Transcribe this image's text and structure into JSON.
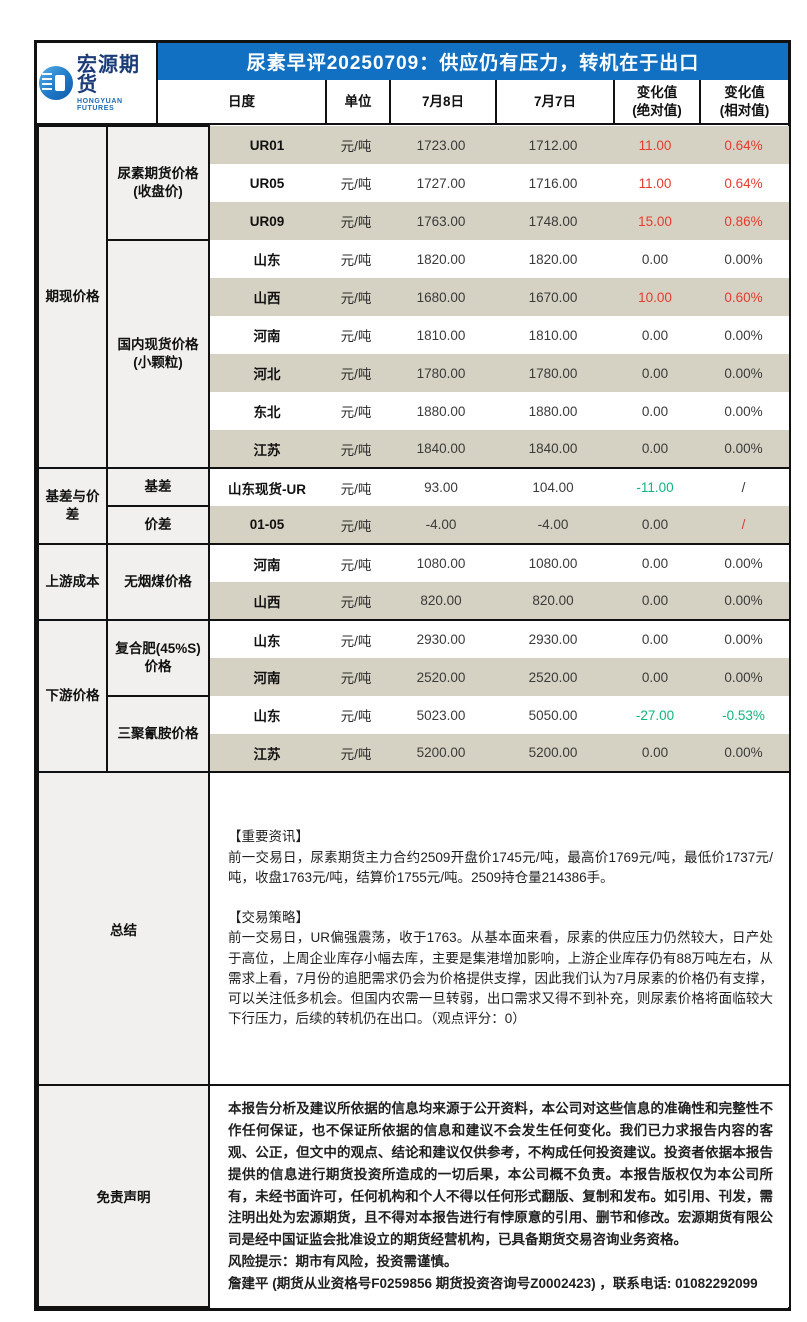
{
  "colors": {
    "accent_blue": "#1170c2",
    "stripe_beige": "#d6d2c3",
    "panel_gray": "#f1f0ee",
    "up_red": "#e8392e",
    "down_green": "#10b57c"
  },
  "logo": {
    "name": "宏源期货",
    "subtitle": "HONGYUAN FUTURES"
  },
  "title": "尿素早评20250709：供应仍有压力，转机在于出口",
  "header": {
    "period": "日度",
    "unit": "单位",
    "date1": "7月8日",
    "date2": "7月7日",
    "chg_abs": "变化值\n(绝对值)",
    "chg_rel": "变化值\n(相对值)"
  },
  "table": {
    "cats": {
      "c1": "期现价格",
      "c2": "基差与价差",
      "c3": "上游成本",
      "c4": "下游价格",
      "c5": "总结",
      "c6": "免责声明"
    },
    "groups": {
      "g1": "尿素期货价格\n(收盘价)",
      "g2": "国内现货价格\n(小颗粒)",
      "g3": "基差",
      "g4": "价差",
      "g5": "无烟煤价格",
      "g6": "复合肥(45%S)\n价格",
      "g7": "三聚氰胺价格"
    },
    "rows": [
      {
        "item": "UR01",
        "unit": "元/吨",
        "jul8": "1723.00",
        "jul7": "1712.00",
        "chg_abs": "11.00",
        "abs_state": "up",
        "chg_rel": "0.64%",
        "rel_state": "up"
      },
      {
        "item": "UR05",
        "unit": "元/吨",
        "jul8": "1727.00",
        "jul7": "1716.00",
        "chg_abs": "11.00",
        "abs_state": "up",
        "chg_rel": "0.64%",
        "rel_state": "up"
      },
      {
        "item": "UR09",
        "unit": "元/吨",
        "jul8": "1763.00",
        "jul7": "1748.00",
        "chg_abs": "15.00",
        "abs_state": "up",
        "chg_rel": "0.86%",
        "rel_state": "up"
      },
      {
        "item": "山东",
        "unit": "元/吨",
        "jul8": "1820.00",
        "jul7": "1820.00",
        "chg_abs": "0.00",
        "abs_state": "flat",
        "chg_rel": "0.00%",
        "rel_state": "flat"
      },
      {
        "item": "山西",
        "unit": "元/吨",
        "jul8": "1680.00",
        "jul7": "1670.00",
        "chg_abs": "10.00",
        "abs_state": "up",
        "chg_rel": "0.60%",
        "rel_state": "up"
      },
      {
        "item": "河南",
        "unit": "元/吨",
        "jul8": "1810.00",
        "jul7": "1810.00",
        "chg_abs": "0.00",
        "abs_state": "flat",
        "chg_rel": "0.00%",
        "rel_state": "flat"
      },
      {
        "item": "河北",
        "unit": "元/吨",
        "jul8": "1780.00",
        "jul7": "1780.00",
        "chg_abs": "0.00",
        "abs_state": "flat",
        "chg_rel": "0.00%",
        "rel_state": "flat"
      },
      {
        "item": "东北",
        "unit": "元/吨",
        "jul8": "1880.00",
        "jul7": "1880.00",
        "chg_abs": "0.00",
        "abs_state": "flat",
        "chg_rel": "0.00%",
        "rel_state": "flat"
      },
      {
        "item": "江苏",
        "unit": "元/吨",
        "jul8": "1840.00",
        "jul7": "1840.00",
        "chg_abs": "0.00",
        "abs_state": "flat",
        "chg_rel": "0.00%",
        "rel_state": "flat"
      },
      {
        "item": "山东现货-UR",
        "unit": "元/吨",
        "jul8": "93.00",
        "jul7": "104.00",
        "chg_abs": "-11.00",
        "abs_state": "down",
        "chg_rel": "/",
        "rel_state": "flat"
      },
      {
        "item": "01-05",
        "unit": "元/吨",
        "jul8": "-4.00",
        "jul7": "-4.00",
        "chg_abs": "0.00",
        "abs_state": "flat",
        "chg_rel": "/",
        "rel_state": "up"
      },
      {
        "item": "河南",
        "unit": "元/吨",
        "jul8": "1080.00",
        "jul7": "1080.00",
        "chg_abs": "0.00",
        "abs_state": "flat",
        "chg_rel": "0.00%",
        "rel_state": "flat"
      },
      {
        "item": "山西",
        "unit": "元/吨",
        "jul8": "820.00",
        "jul7": "820.00",
        "chg_abs": "0.00",
        "abs_state": "flat",
        "chg_rel": "0.00%",
        "rel_state": "flat"
      },
      {
        "item": "山东",
        "unit": "元/吨",
        "jul8": "2930.00",
        "jul7": "2930.00",
        "chg_abs": "0.00",
        "abs_state": "flat",
        "chg_rel": "0.00%",
        "rel_state": "flat"
      },
      {
        "item": "河南",
        "unit": "元/吨",
        "jul8": "2520.00",
        "jul7": "2520.00",
        "chg_abs": "0.00",
        "abs_state": "flat",
        "chg_rel": "0.00%",
        "rel_state": "flat"
      },
      {
        "item": "山东",
        "unit": "元/吨",
        "jul8": "5023.00",
        "jul7": "5050.00",
        "chg_abs": "-27.00",
        "abs_state": "down",
        "chg_rel": "-0.53%",
        "rel_state": "down"
      },
      {
        "item": "江苏",
        "unit": "元/吨",
        "jul8": "5200.00",
        "jul7": "5200.00",
        "chg_abs": "0.00",
        "abs_state": "flat",
        "chg_rel": "0.00%",
        "rel_state": "flat"
      }
    ]
  },
  "summary": {
    "news_title": "【重要资讯】",
    "news_body": "前一交易日，尿素期货主力合约2509开盘价1745元/吨，最高价1769元/吨，最低价1737元/吨，收盘1763元/吨，结算价1755元/吨。2509持仓量214386手。",
    "strategy_title": "【交易策略】",
    "strategy_body": "前一交易日，UR偏强震荡，收于1763。从基本面来看，尿素的供应压力仍然较大，日产处于高位，上周企业库存小幅去库，主要是集港增加影响，上游企业库存仍有88万吨左右，从需求上看，7月份的追肥需求仍会为价格提供支撑，因此我们认为7月尿素的价格仍有支撑，可以关注低多机会。但国内农需一旦转弱，出口需求又得不到补充，则尿素价格将面临较大下行压力，后续的转机仍在出口。（观点评分：0）"
  },
  "disclaimer": {
    "body": "本报告分析及建议所依据的信息均来源于公开资料，本公司对这些信息的准确性和完整性不作任何保证，也不保证所依据的信息和建议不会发生任何变化。我们已力求报告内容的客观、公正，但文中的观点、结论和建议仅供参考，不构成任何投资建议。投资者依据本报告提供的信息进行期货投资所造成的一切后果，本公司概不负责。本报告版权仅为本公司所有，未经书面许可，任何机构和个人不得以任何形式翻版、复制和发布。如引用、刊发，需注明出处为宏源期货，且不得对本报告进行有悖原意的引用、删节和修改。宏源期货有限公司是经中国证监会批准设立的期货经营机构，已具备期货交易咨询业务资格。",
    "risk": "风险提示：期市有风险，投资需谨慎。",
    "contact": "詹建平 (期货从业资格号F0259856 期货投资咨询号Z0002423) ，联系电话: 01082292099"
  }
}
